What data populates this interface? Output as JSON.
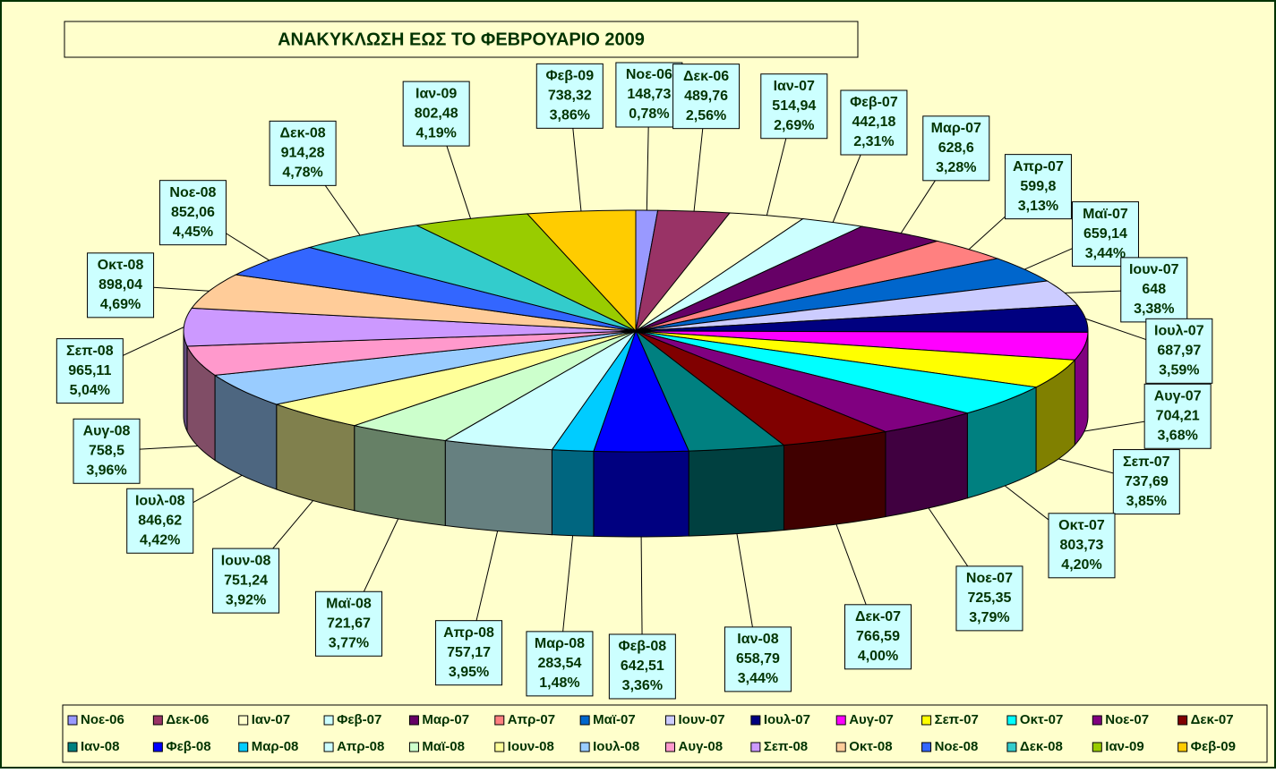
{
  "chart_data": {
    "type": "pie3d",
    "title": "ΑΝΑΚΥΚΛΩΣΗ ΕΩΣ ΤΟ ΦΕΒΡΟΥΑΡΙΟ 2009",
    "categories": [
      "Νοε-06",
      "Δεκ-06",
      "Ιαν-07",
      "Φεβ-07",
      "Μαρ-07",
      "Απρ-07",
      "Μαϊ-07",
      "Ιουν-07",
      "Ιουλ-07",
      "Αυγ-07",
      "Σεπ-07",
      "Οκτ-07",
      "Νοε-07",
      "Δεκ-07",
      "Ιαν-08",
      "Φεβ-08",
      "Μαρ-08",
      "Απρ-08",
      "Μαϊ-08",
      "Ιουν-08",
      "Ιουλ-08",
      "Αυγ-08",
      "Σεπ-08",
      "Οκτ-08",
      "Νοε-08",
      "Δεκ-08",
      "Ιαν-09",
      "Φεβ-09"
    ],
    "values": [
      148.73,
      489.76,
      514.94,
      442.18,
      628.6,
      599.8,
      659.14,
      648,
      687.97,
      704.21,
      737.69,
      803.73,
      725.35,
      766.59,
      658.79,
      642.51,
      283.54,
      757.17,
      721.67,
      751.24,
      846.62,
      758.5,
      965.11,
      898.04,
      852.06,
      914.28,
      802.48,
      738.32
    ],
    "value_labels": [
      "148,73",
      "489,76",
      "514,94",
      "442,18",
      "628,6",
      "599,8",
      "659,14",
      "648",
      "687,97",
      "704,21",
      "737,69",
      "803,73",
      "725,35",
      "766,59",
      "658,79",
      "642,51",
      "283,54",
      "757,17",
      "721,67",
      "751,24",
      "846,62",
      "758,5",
      "965,11",
      "898,04",
      "852,06",
      "914,28",
      "802,48",
      "738,32"
    ],
    "percents": [
      0.78,
      2.56,
      2.69,
      2.31,
      3.28,
      3.13,
      3.44,
      3.38,
      3.59,
      3.68,
      3.85,
      4.2,
      3.79,
      4,
      3.44,
      3.36,
      1.48,
      3.95,
      3.77,
      3.92,
      4.42,
      3.96,
      5.04,
      4.69,
      4.45,
      4.78,
      4.19,
      3.86
    ],
    "percent_labels": [
      "0,78%",
      "2,56%",
      "2,69%",
      "2,31%",
      "3,28%",
      "3,13%",
      "3,44%",
      "3,38%",
      "3,59%",
      "3,68%",
      "3,85%",
      "4,20%",
      "3,79%",
      "4,00%",
      "3,44%",
      "3,36%",
      "1,48%",
      "3,95%",
      "3,77%",
      "3,92%",
      "4,42%",
      "3,96%",
      "5,04%",
      "4,69%",
      "4,45%",
      "4,78%",
      "4,19%",
      "3,86%"
    ],
    "colors": [
      "#9999ff",
      "#993366",
      "#ffffcc",
      "#ccffff",
      "#660066",
      "#ff8080",
      "#0066cc",
      "#ccccff",
      "#000080",
      "#ff00ff",
      "#ffff00",
      "#00ffff",
      "#800080",
      "#800000",
      "#008080",
      "#0000ff",
      "#00ccff",
      "#ccffff",
      "#ccffcc",
      "#ffff99",
      "#99ccff",
      "#ff99cc",
      "#cc99ff",
      "#ffcc99",
      "#3366ff",
      "#33cccc",
      "#99cc00",
      "#ffcc00"
    ],
    "legend": "bottom"
  }
}
